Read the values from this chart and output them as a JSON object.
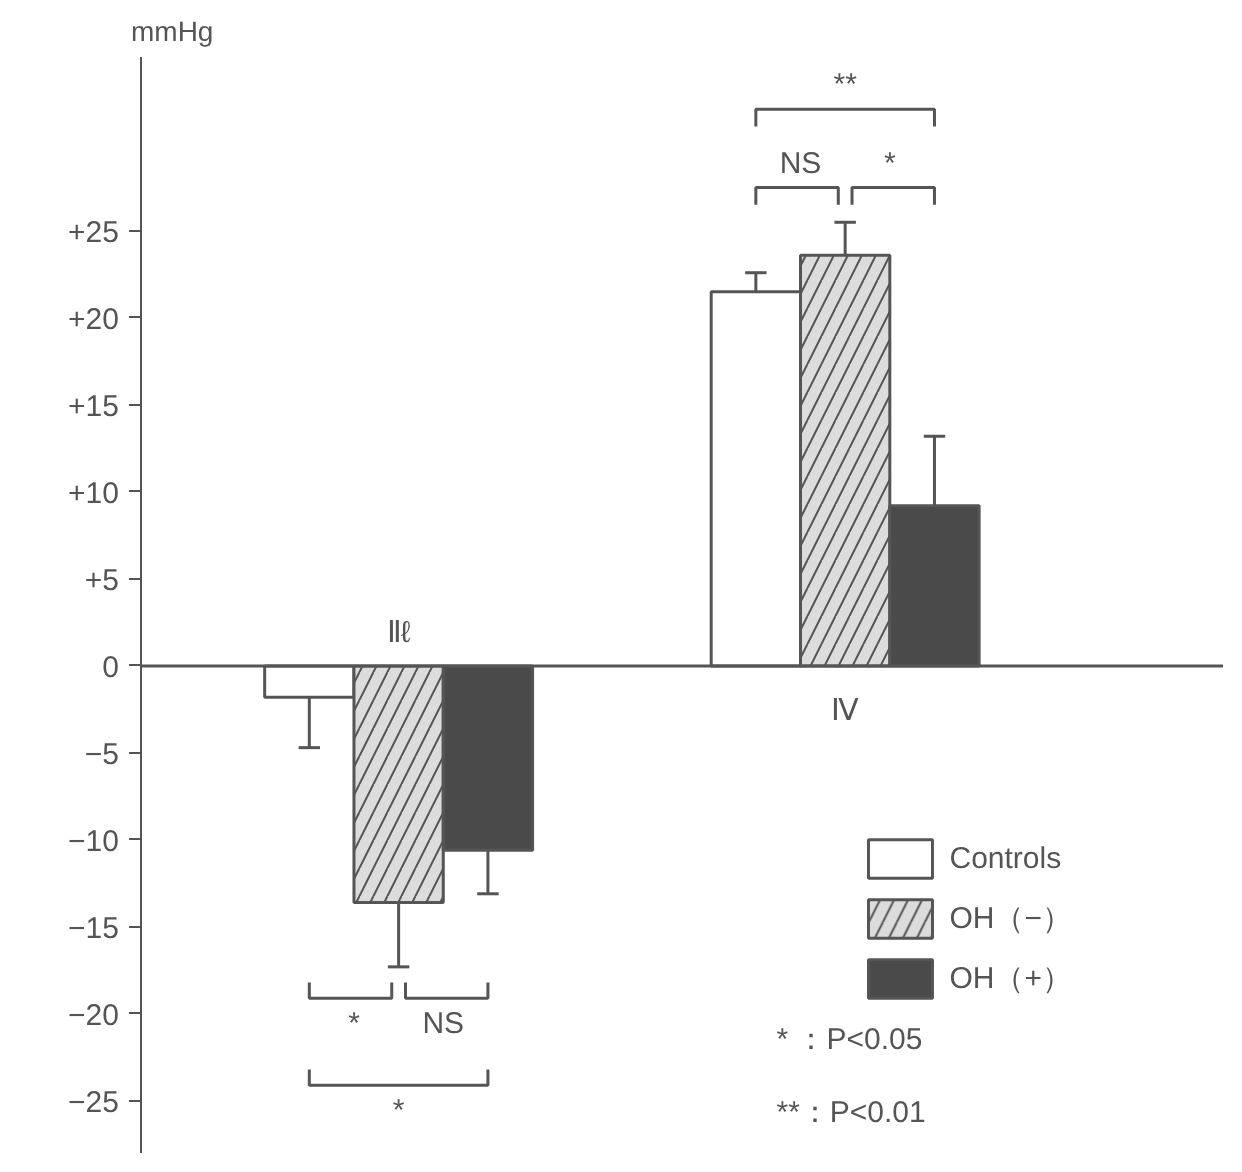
{
  "chart_data": {
    "type": "bar",
    "ylabel": "mmHg",
    "categories": [
      "Ⅱℓ",
      "Ⅳ"
    ],
    "series": [
      {
        "name": "Controls",
        "color": "#ffffff",
        "values": [
          -1.8,
          21.5
        ],
        "errors": [
          [
            -4.7,
            -1.8
          ],
          [
            21.5,
            22.6
          ]
        ]
      },
      {
        "name": "OH（−）",
        "color": "#dcdcdc",
        "values": [
          -13.6,
          23.6
        ],
        "errors": [
          [
            -17.3,
            -13.6
          ],
          [
            23.6,
            25.5
          ]
        ]
      },
      {
        "name": "OH（+）",
        "color": "#4a4a4a",
        "values": [
          -10.6,
          9.2
        ],
        "errors": [
          [
            -13.1,
            -10.6
          ],
          [
            9.2,
            13.2
          ]
        ]
      }
    ],
    "ylim": [
      -28,
      35
    ],
    "yticks": [
      {
        "value": -25,
        "label": "−25"
      },
      {
        "value": -20,
        "label": "−20"
      },
      {
        "value": -15,
        "label": "−15"
      },
      {
        "value": -10,
        "label": "−10"
      },
      {
        "value": -5,
        "label": "−5"
      },
      0,
      {
        "value": 5,
        "label": "+5"
      },
      {
        "value": 10,
        "label": "+10"
      },
      {
        "value": 15,
        "label": "+15"
      },
      {
        "value": 20,
        "label": "+20"
      },
      {
        "value": 25,
        "label": "+25"
      }
    ],
    "grid": false,
    "legend": "bottom right",
    "ref_lines": [
      {
        "axis": "y",
        "value": 0,
        "label": null
      }
    ],
    "annotations": [
      "**",
      "NS",
      "*",
      "*",
      "NS",
      "*",
      "*  ：P<0.05",
      "**：P<0.01"
    ]
  }
}
